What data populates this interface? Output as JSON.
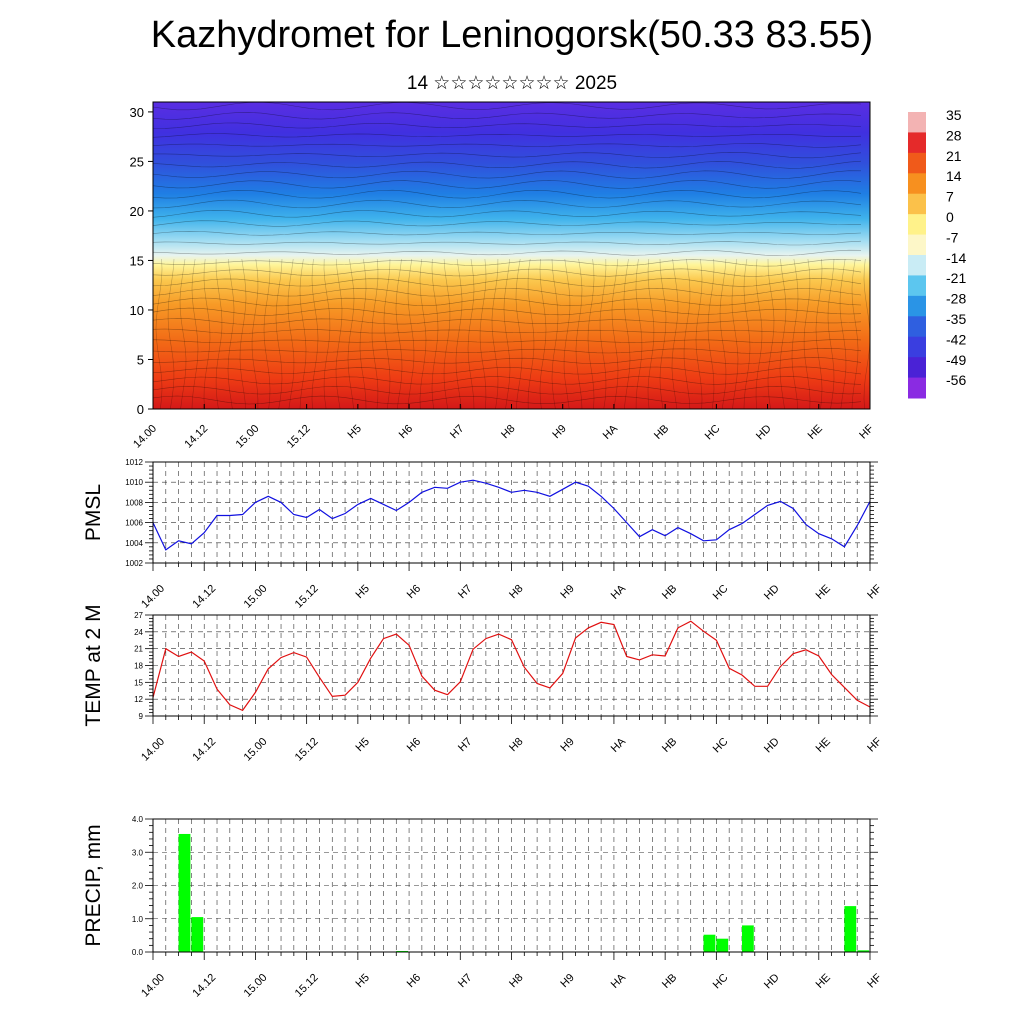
{
  "title": "Kazhydromet for Leninogorsk(50.33 83.55)",
  "subtitle": "14 ☆☆☆☆☆☆☆☆ 2025",
  "time_labels": [
    "14.00",
    "14.12",
    "15.00",
    "15.12",
    "H5",
    "H6",
    "H7",
    "H8",
    "H9",
    "HA",
    "HB",
    "HC",
    "HD",
    "HE",
    "HF"
  ],
  "chart_data": [
    {
      "type": "heatmap",
      "name": "vertical cross-section",
      "y_ticks": [
        0,
        5,
        10,
        15,
        20,
        25,
        30
      ],
      "ylim": [
        0,
        31
      ],
      "colorbar": {
        "labels": [
          "35",
          "28",
          "21",
          "14",
          "7",
          "0",
          "-7",
          "-14",
          "-21",
          "-28",
          "-35",
          "-42",
          "-49",
          "-56"
        ],
        "colors": [
          "#f3b3b3",
          "#e52a2a",
          "#f05a1a",
          "#f7901f",
          "#fbc14a",
          "#fff28a",
          "#fdf7c8",
          "#c9ecf5",
          "#5cc6ef",
          "#2a94e6",
          "#2f5fe0",
          "#3a3ee0",
          "#4a22d6",
          "#8a2be2"
        ]
      }
    },
    {
      "type": "line",
      "ylabel": "PMSL",
      "ylim": [
        1002,
        1012
      ],
      "y_ticks": [
        1002,
        1004,
        1006,
        1008,
        1010,
        1012
      ],
      "color": "#1010e0",
      "x": [
        0,
        0.25,
        0.5,
        0.75,
        1,
        1.25,
        1.5,
        1.75,
        2,
        2.25,
        2.5,
        2.75,
        3,
        3.25,
        3.5,
        3.75,
        4,
        4.25,
        4.5,
        4.75,
        5,
        5.25,
        5.5,
        5.75,
        6,
        6.25,
        6.5,
        6.75,
        7,
        7.25,
        7.5,
        7.75,
        8,
        8.25,
        8.5,
        8.75,
        9,
        9.25,
        9.5,
        9.75,
        10,
        10.25,
        10.5,
        10.75,
        11,
        11.25,
        11.5,
        11.75,
        12,
        12.25,
        12.5,
        12.75,
        13,
        13.25,
        13.5,
        13.75,
        14
      ],
      "values": [
        1006.0,
        1003.3,
        1004.2,
        1003.9,
        1005.0,
        1006.7,
        1006.7,
        1006.8,
        1008.0,
        1008.6,
        1008.0,
        1006.8,
        1006.5,
        1007.3,
        1006.4,
        1006.9,
        1007.8,
        1008.4,
        1007.8,
        1007.2,
        1008.0,
        1009.0,
        1009.5,
        1009.4,
        1010.0,
        1010.2,
        1009.9,
        1009.5,
        1009.0,
        1009.2,
        1009.0,
        1008.6,
        1009.3,
        1010.0,
        1009.6,
        1008.6,
        1007.4,
        1006.0,
        1004.6,
        1005.3,
        1004.7,
        1005.5,
        1004.9,
        1004.2,
        1004.3,
        1005.3,
        1005.9,
        1006.8,
        1007.7,
        1008.1,
        1007.4,
        1005.8,
        1004.9,
        1004.4,
        1003.6,
        1005.7,
        1008.1
      ]
    },
    {
      "type": "line",
      "ylabel": "TEMP at 2 M",
      "ylim": [
        9,
        27
      ],
      "y_ticks": [
        9,
        12,
        15,
        18,
        21,
        24,
        27
      ],
      "color": "#e01010",
      "x": [
        0,
        0.25,
        0.5,
        0.75,
        1,
        1.25,
        1.5,
        1.75,
        2,
        2.25,
        2.5,
        2.75,
        3,
        3.25,
        3.5,
        3.75,
        4,
        4.25,
        4.5,
        4.75,
        5,
        5.25,
        5.5,
        5.75,
        6,
        6.25,
        6.5,
        6.75,
        7,
        7.25,
        7.5,
        7.75,
        8,
        8.25,
        8.5,
        8.75,
        9,
        9.25,
        9.5,
        9.75,
        10,
        10.25,
        10.5,
        10.75,
        11,
        11.25,
        11.5,
        11.75,
        12,
        12.25,
        12.5,
        12.75,
        13,
        13.25,
        13.5,
        13.75,
        14
      ],
      "values": [
        12.3,
        21.0,
        19.6,
        20.4,
        18.8,
        13.8,
        11.0,
        10.0,
        13.2,
        17.4,
        19.4,
        20.3,
        19.5,
        15.9,
        12.5,
        12.7,
        15.0,
        19.3,
        22.8,
        23.6,
        21.6,
        16.1,
        13.6,
        12.8,
        15.1,
        20.9,
        22.8,
        23.6,
        22.6,
        17.7,
        14.8,
        14.0,
        16.6,
        22.9,
        24.7,
        25.7,
        25.3,
        19.6,
        19.0,
        19.9,
        19.7,
        24.7,
        25.9,
        24.1,
        22.5,
        17.5,
        16.3,
        14.3,
        14.3,
        17.8,
        20.1,
        20.8,
        19.7,
        16.4,
        14.1,
        11.8,
        10.6
      ]
    },
    {
      "type": "bar",
      "ylabel": "PRECIP, mm",
      "ylim": [
        0,
        4
      ],
      "y_ticks": [
        "0.0",
        "1.0",
        "2.0",
        "3.0",
        "4.0"
      ],
      "color": "#00ff00",
      "x": [
        0.5,
        0.75,
        4.75,
        10.75,
        11,
        11.5,
        13.5,
        13.75
      ],
      "values": [
        3.55,
        1.05,
        0.03,
        0.52,
        0.4,
        0.8,
        1.38,
        0.05
      ]
    }
  ]
}
